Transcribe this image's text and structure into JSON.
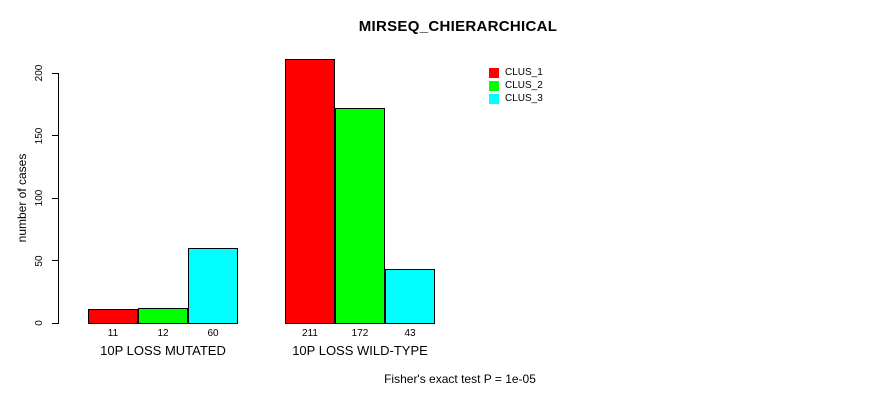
{
  "chart_data": {
    "type": "bar",
    "title": "MIRSEQ_CHIERARCHICAL",
    "ylabel": "number of cases",
    "xlabel": "",
    "categories": [
      "10P LOSS MUTATED",
      "10P LOSS WILD-TYPE"
    ],
    "series": [
      {
        "name": "CLUS_1",
        "color": "#FF0000",
        "values": [
          11,
          211
        ]
      },
      {
        "name": "CLUS_2",
        "color": "#00FF00",
        "values": [
          12,
          172
        ]
      },
      {
        "name": "CLUS_3",
        "color": "#00FFFF",
        "values": [
          60,
          43
        ]
      }
    ],
    "bar_value_labels": [
      [
        "11",
        "12",
        "60"
      ],
      [
        "211",
        "172",
        "43"
      ]
    ],
    "yticks": [
      0,
      50,
      100,
      150,
      200
    ],
    "ylim": [
      0,
      211
    ],
    "grid": false,
    "legend_position": "top-right",
    "bar_border_color": "#000000",
    "background_color": "#FFFFFF",
    "text_color": "#000000"
  },
  "caption": "Fisher's exact test P = 1e-05"
}
